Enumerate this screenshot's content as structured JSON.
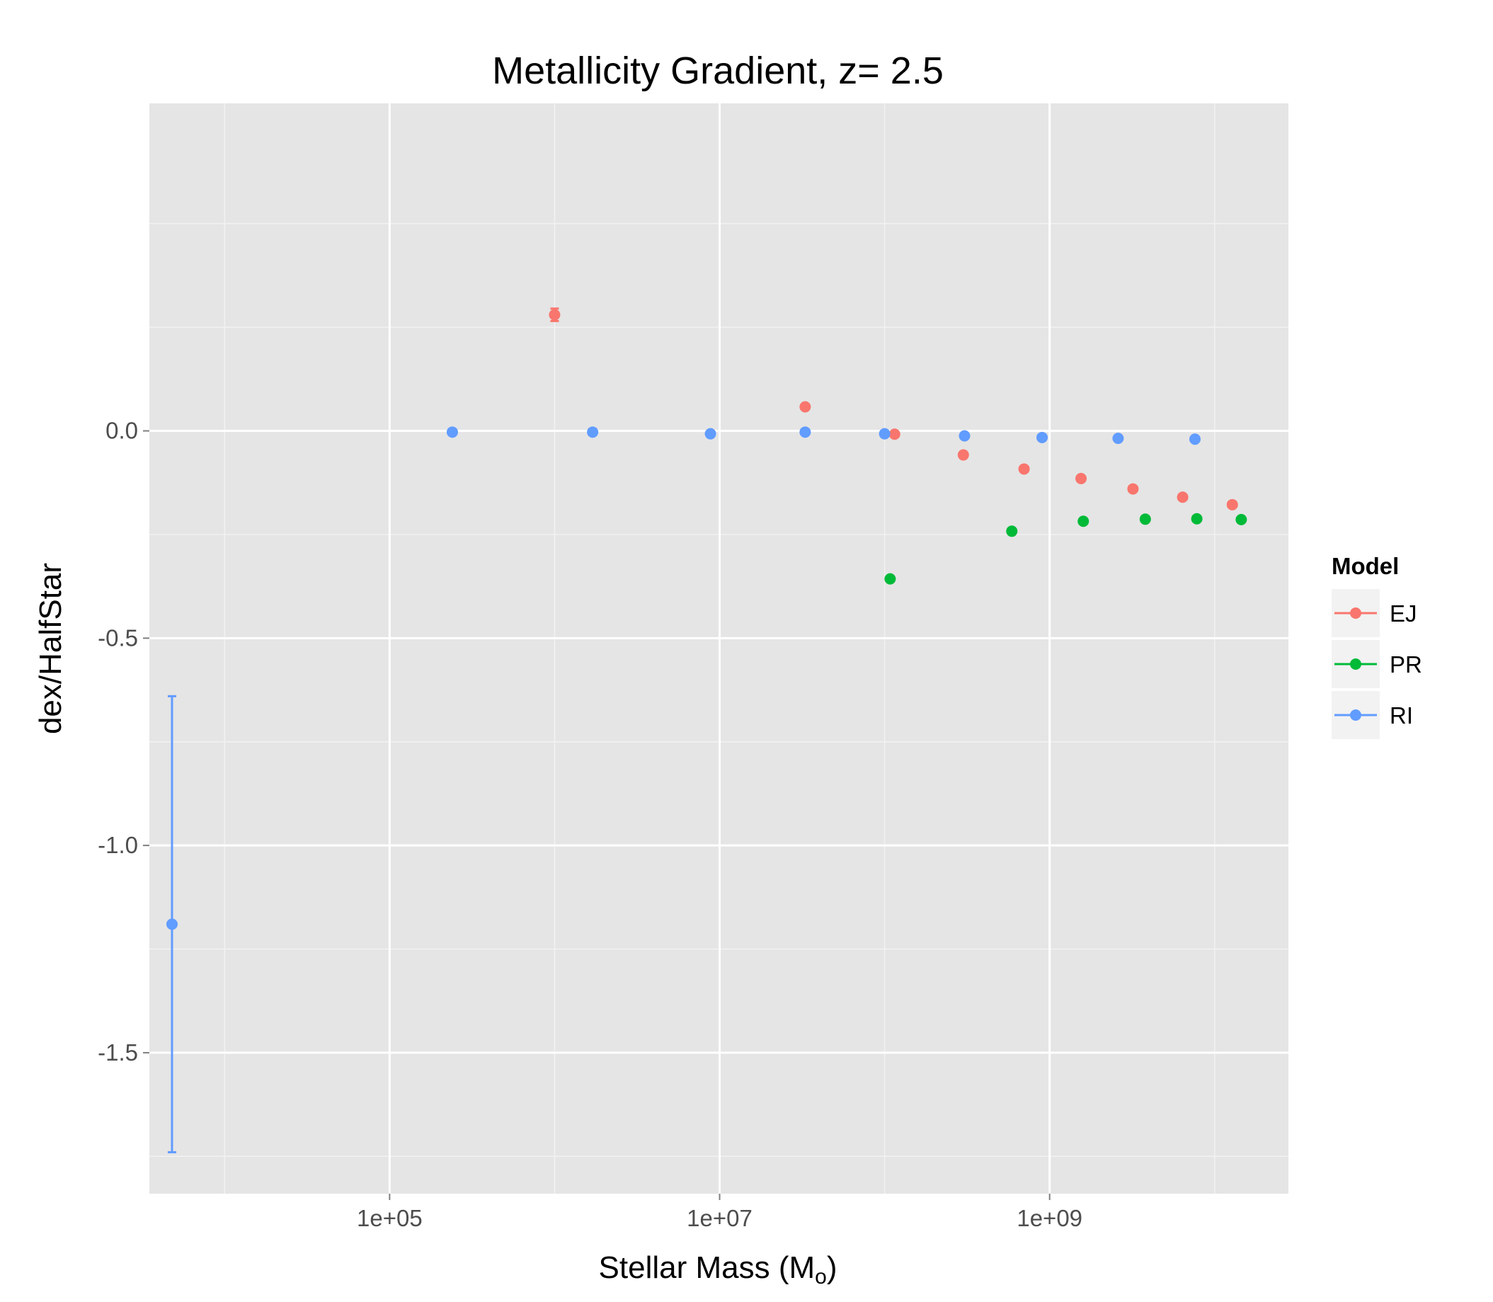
{
  "chart_data": {
    "type": "scatter",
    "title": "Metallicity Gradient, z= 2.5",
    "xlabel": "Stellar Mass (M",
    "xlabel_subscript": "o",
    "xlabel_suffix": ")",
    "ylabel": "dex/HalfStar",
    "xscale": "log10",
    "xlim": [
      3500,
      28000000000
    ],
    "ylim": [
      -1.84,
      0.79
    ],
    "x_ticks": [
      {
        "value": 100000,
        "label": "1e+05"
      },
      {
        "value": 10000000,
        "label": "1e+07"
      },
      {
        "value": 1000000000,
        "label": "1e+09"
      }
    ],
    "x_minor_ticks": [
      10000,
      1000000,
      100000000,
      10000000000
    ],
    "y_ticks": [
      {
        "value": 0.0,
        "label": "0.0"
      },
      {
        "value": -0.5,
        "label": "-0.5"
      },
      {
        "value": -1.0,
        "label": "-1.0"
      },
      {
        "value": -1.5,
        "label": "-1.5"
      }
    ],
    "y_minor_ticks": [
      0.5,
      0.25,
      -0.25,
      -0.75,
      -1.25,
      -1.75
    ],
    "grid": true,
    "legend": {
      "title": "Model",
      "position": "right"
    },
    "series": [
      {
        "name": "EJ",
        "color": "#F8766D",
        "points": [
          {
            "x": 1000000,
            "y": 0.28,
            "err_lo": 0.265,
            "err_hi": 0.295
          },
          {
            "x": 33000000,
            "y": 0.058
          },
          {
            "x": 115000000,
            "y": -0.008
          },
          {
            "x": 300000000,
            "y": -0.058
          },
          {
            "x": 700000000,
            "y": -0.092
          },
          {
            "x": 1550000000,
            "y": -0.115
          },
          {
            "x": 3200000000,
            "y": -0.14
          },
          {
            "x": 6400000000,
            "y": -0.16
          },
          {
            "x": 12800000000,
            "y": -0.178
          }
        ]
      },
      {
        "name": "PR",
        "color": "#00BA38",
        "points": [
          {
            "x": 108000000,
            "y": -0.357
          },
          {
            "x": 590000000,
            "y": -0.242
          },
          {
            "x": 1600000000,
            "y": -0.218
          },
          {
            "x": 3800000000,
            "y": -0.213
          },
          {
            "x": 7800000000,
            "y": -0.212
          },
          {
            "x": 14500000000,
            "y": -0.214
          }
        ]
      },
      {
        "name": "RI",
        "color": "#619CFF",
        "points": [
          {
            "x": 4800,
            "y": -1.19,
            "err_lo": -1.74,
            "err_hi": -0.64
          },
          {
            "x": 240000,
            "y": -0.003
          },
          {
            "x": 1700000,
            "y": -0.003
          },
          {
            "x": 8800000,
            "y": -0.007
          },
          {
            "x": 33000000,
            "y": -0.003
          },
          {
            "x": 100000000,
            "y": -0.007
          },
          {
            "x": 305000000,
            "y": -0.012
          },
          {
            "x": 900000000,
            "y": -0.016
          },
          {
            "x": 2600000000,
            "y": -0.018
          },
          {
            "x": 7600000000,
            "y": -0.02
          }
        ]
      }
    ]
  }
}
